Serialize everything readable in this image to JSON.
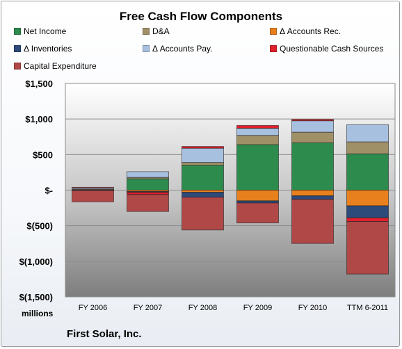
{
  "chart_data": {
    "type": "bar",
    "stacked": true,
    "title": "Free Cash Flow Components",
    "company": "First Solar, Inc.",
    "units_label": "millions",
    "categories": [
      "FY 2006",
      "FY 2007",
      "FY 2008",
      "FY 2009",
      "FY 2010",
      "TTM 6-2011"
    ],
    "ylim": [
      -1500,
      1500
    ],
    "yticks": [
      {
        "value": 1500,
        "label": "$1,500"
      },
      {
        "value": 1000,
        "label": "$1,000"
      },
      {
        "value": 500,
        "label": "$500"
      },
      {
        "value": 0,
        "label": "$-"
      },
      {
        "value": -500,
        "label": "$(500)"
      },
      {
        "value": -1000,
        "label": "$(1,000)"
      },
      {
        "value": -1500,
        "label": "$(1,500)"
      }
    ],
    "grid": true,
    "legend_position": "top",
    "series": [
      {
        "name": "Net Income",
        "color": "#2e8b4e",
        "values": [
          5,
          160,
          350,
          640,
          665,
          510
        ]
      },
      {
        "name": "D&A",
        "color": "#a09068",
        "values": [
          10,
          20,
          40,
          130,
          150,
          170
        ]
      },
      {
        "name": "Δ Accounts Rec.",
        "color": "#e8801e",
        "values": [
          0,
          -20,
          -30,
          -150,
          -80,
          -220
        ]
      },
      {
        "name": "Δ Inventories",
        "color": "#2c4a7a",
        "values": [
          -5,
          -10,
          -70,
          -30,
          -50,
          -170
        ]
      },
      {
        "name": "Δ Accounts Pay.",
        "color": "#a8c0e0",
        "values": [
          15,
          80,
          200,
          100,
          160,
          240
        ]
      },
      {
        "name": "Questionable Cash Sources",
        "color": "#e0202c",
        "values": [
          10,
          -30,
          25,
          40,
          20,
          -50
        ]
      },
      {
        "name": "Capital Expenditure",
        "color": "#b04848",
        "values": [
          -160,
          -240,
          -460,
          -280,
          -620,
          -740
        ]
      }
    ]
  }
}
